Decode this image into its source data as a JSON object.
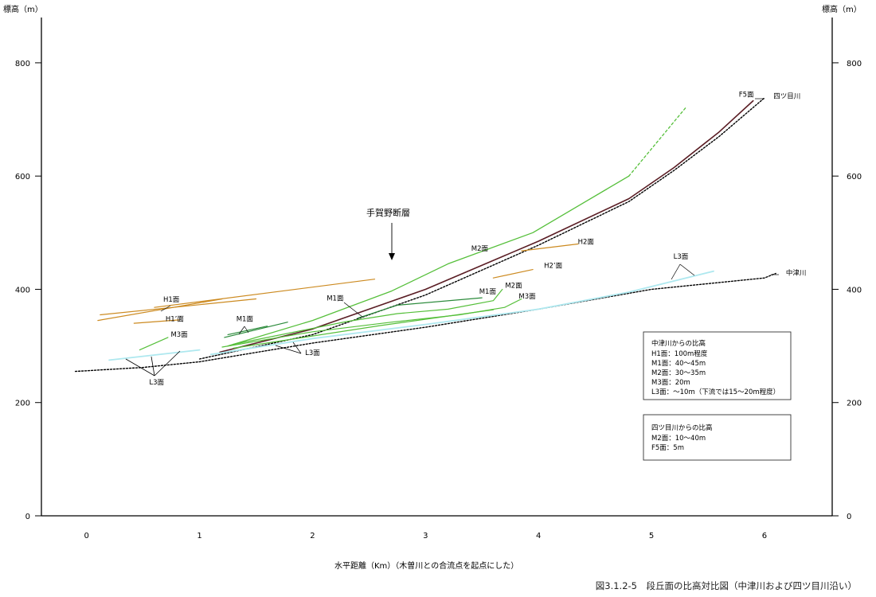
{
  "chart_data": {
    "type": "line",
    "y_label": "標高（m）",
    "x_label": "水平距離（Km）（木曽川との合流点を起点にした）",
    "caption": "図3.1.2-5　段丘面の比高対比図（中津川および四ツ目川沿い）",
    "xlim": [
      -0.4,
      6.6
    ],
    "ylim": [
      0,
      880
    ],
    "x_ticks": [
      "0",
      "1",
      "2",
      "3",
      "4",
      "5",
      "6"
    ],
    "y_ticks_left": [
      "0",
      "200",
      "400",
      "600",
      "800"
    ],
    "y_ticks_right": [
      "0",
      "200",
      "400",
      "600",
      "800"
    ],
    "colors": {
      "rivers": "#000000",
      "H": "#cc8a20",
      "M": "#55bf3a",
      "M1": "#2a8a3a",
      "L3": "#aee8ef",
      "F5": "#5a1d24"
    },
    "series": [
      {
        "name": "中津川",
        "color": "#000000",
        "dash": "2,2",
        "width": 1.4,
        "points": [
          [
            -0.1,
            255
          ],
          [
            0.5,
            262
          ],
          [
            1.0,
            272
          ],
          [
            2.0,
            305
          ],
          [
            3.0,
            333
          ],
          [
            4.0,
            365
          ],
          [
            5.0,
            400
          ],
          [
            6.0,
            420
          ],
          [
            6.1,
            428
          ]
        ]
      },
      {
        "name": "四ツ目川",
        "color": "#000000",
        "dash": "2,2",
        "width": 1.4,
        "points": [
          [
            1.0,
            277
          ],
          [
            2.0,
            320
          ],
          [
            3.0,
            390
          ],
          [
            4.0,
            478
          ],
          [
            4.8,
            555
          ],
          [
            5.2,
            610
          ],
          [
            5.6,
            670
          ],
          [
            6.0,
            738
          ]
        ]
      },
      {
        "name": "F5面",
        "color": "#5a1d24",
        "width": 1.6,
        "points": [
          [
            1.18,
            289
          ],
          [
            2.0,
            330
          ],
          [
            3.0,
            400
          ],
          [
            4.0,
            485
          ],
          [
            4.8,
            560
          ],
          [
            5.2,
            615
          ],
          [
            5.6,
            678
          ],
          [
            5.9,
            733
          ]
        ]
      },
      {
        "name": "H1面",
        "color": "#cc8a20",
        "width": 1.2,
        "points": [
          [
            0.1,
            345
          ],
          [
            1.2,
            383
          ]
        ]
      },
      {
        "name": "H1面",
        "color": "#cc8a20",
        "width": 1.2,
        "points": [
          [
            0.12,
            355
          ],
          [
            1.5,
            383
          ]
        ]
      },
      {
        "name": "H1面",
        "color": "#cc8a20",
        "width": 1.2,
        "points": [
          [
            0.6,
            368
          ],
          [
            2.55,
            418
          ]
        ]
      },
      {
        "name": "H1’面",
        "color": "#cc8a20",
        "width": 1.2,
        "points": [
          [
            0.42,
            340
          ],
          [
            0.82,
            346
          ]
        ]
      },
      {
        "name": "H2’面",
        "color": "#cc8a20",
        "width": 1.2,
        "points": [
          [
            3.6,
            420
          ],
          [
            3.95,
            435
          ]
        ]
      },
      {
        "name": "H2面",
        "color": "#cc8a20",
        "width": 1.2,
        "points": [
          [
            3.85,
            468
          ],
          [
            4.35,
            480
          ]
        ]
      },
      {
        "name": "M3面",
        "color": "#55bf3a",
        "width": 1.2,
        "points": [
          [
            0.47,
            293
          ],
          [
            0.72,
            315
          ]
        ]
      },
      {
        "name": "M1面",
        "color": "#2a8a3a",
        "width": 1.2,
        "points": [
          [
            1.22,
            315
          ],
          [
            1.78,
            342
          ]
        ]
      },
      {
        "name": "M1面",
        "color": "#2a8a3a",
        "width": 1.2,
        "points": [
          [
            1.25,
            320
          ],
          [
            1.6,
            335
          ]
        ]
      },
      {
        "name": "M1面",
        "color": "#2a8a3a",
        "width": 1.2,
        "points": [
          [
            2.4,
            349
          ],
          [
            2.75,
            372
          ],
          [
            3.5,
            385
          ]
        ]
      },
      {
        "name": "M2面",
        "color": "#55bf3a",
        "width": 1.3,
        "points": [
          [
            1.25,
            300
          ],
          [
            2.0,
            345
          ],
          [
            2.7,
            397
          ],
          [
            3.2,
            445
          ],
          [
            3.95,
            500
          ],
          [
            4.8,
            600
          ]
        ]
      },
      {
        "name": "M2面",
        "color": "#55bf3a",
        "width": 1.3,
        "dash": "3,3",
        "points": [
          [
            4.8,
            600
          ],
          [
            5.3,
            720
          ]
        ]
      },
      {
        "name": "M2面",
        "color": "#55bf3a",
        "width": 1.2,
        "points": [
          [
            1.3,
            303
          ],
          [
            2.3,
            343
          ],
          [
            2.75,
            357
          ],
          [
            3.2,
            365
          ],
          [
            3.6,
            380
          ],
          [
            3.68,
            400
          ]
        ]
      },
      {
        "name": "M3面",
        "color": "#55bf3a",
        "width": 1.2,
        "points": [
          [
            1.2,
            298
          ],
          [
            2.0,
            325
          ],
          [
            2.7,
            342
          ],
          [
            3.3,
            355
          ],
          [
            3.7,
            368
          ],
          [
            3.85,
            383
          ]
        ]
      },
      {
        "name": "M3面",
        "color": "#55bf3a",
        "width": 1.2,
        "points": [
          [
            1.3,
            296
          ],
          [
            2.6,
            336
          ],
          [
            3.6,
            364
          ]
        ]
      },
      {
        "name": "L3面",
        "color": "#aee8ef",
        "width": 1.8,
        "points": [
          [
            0.2,
            275
          ],
          [
            1.0,
            293
          ]
        ]
      },
      {
        "name": "L3面",
        "color": "#aee8ef",
        "width": 1.8,
        "points": [
          [
            1.1,
            285
          ],
          [
            2.0,
            313
          ],
          [
            3.0,
            338
          ],
          [
            4.0,
            365
          ],
          [
            4.8,
            395
          ],
          [
            5.55,
            432
          ]
        ]
      }
    ],
    "annotations": [
      {
        "text": "H1面",
        "x": 0.75,
        "y": 378
      },
      {
        "text": "H1’面",
        "x": 0.78,
        "y": 344
      },
      {
        "text": "M3面",
        "x": 0.82,
        "y": 316
      },
      {
        "text": "L3面",
        "x": 0.62,
        "y": 232
      },
      {
        "text": "M1面",
        "x": 1.4,
        "y": 344
      },
      {
        "text": "L3面",
        "x": 2.0,
        "y": 284
      },
      {
        "text": "M1面",
        "x": 2.2,
        "y": 380
      },
      {
        "text": "M1面",
        "x": 3.55,
        "y": 392
      },
      {
        "text": "M2面",
        "x": 3.48,
        "y": 468
      },
      {
        "text": "M2面",
        "x": 3.78,
        "y": 403
      },
      {
        "text": "M3面",
        "x": 3.9,
        "y": 384
      },
      {
        "text": "H2’面",
        "x": 4.13,
        "y": 438
      },
      {
        "text": "H2面",
        "x": 4.42,
        "y": 480
      },
      {
        "text": "L3面",
        "x": 5.26,
        "y": 454
      },
      {
        "text": "F5面",
        "x": 5.84,
        "y": 740
      },
      {
        "text": "四ツ目川",
        "x": 6.2,
        "y": 737
      },
      {
        "text": "中津川",
        "x": 6.28,
        "y": 425
      },
      {
        "text": "手賀野断層",
        "x": 2.67,
        "y": 530
      }
    ],
    "legend_boxes": [
      {
        "title": "中津川からの比高",
        "lines": [
          "H1面：100m程度",
          "M1面：40～45m",
          "M2面：30～35m",
          "M3面：20m",
          "L3面：～10m（下流では15～20m程度）"
        ]
      },
      {
        "title": "四ツ目川からの比高",
        "lines": [
          "M2面：10～40m",
          "F5面：5m"
        ]
      }
    ]
  }
}
